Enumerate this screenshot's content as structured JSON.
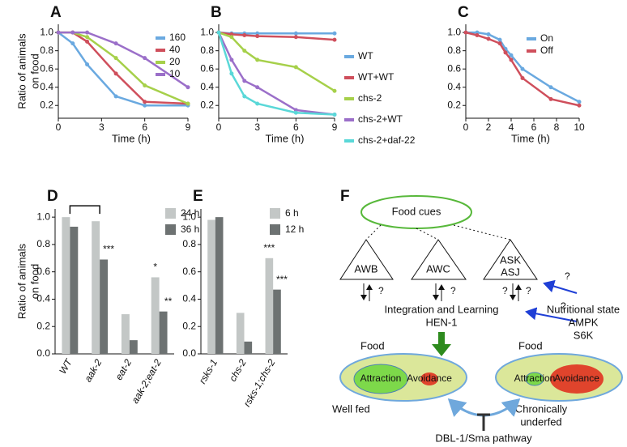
{
  "chart_data": [
    {
      "type": "line",
      "panel": "A",
      "ylabel": [
        "Ratio of animals",
        "on food"
      ],
      "xlabel": "Time (h)",
      "x": [
        0,
        1,
        2,
        4,
        6,
        9
      ],
      "xlim": [
        0,
        9
      ],
      "xticks": [
        0,
        3,
        6,
        9
      ],
      "ylim": [
        0.06,
        1.09
      ],
      "yticks": [
        0.2,
        0.4,
        0.6,
        0.8,
        {
          "value": 1,
          "label": "1.0"
        }
      ],
      "series": [
        {
          "name": "160",
          "color": "#6aa9e0",
          "values": [
            1.0,
            0.88,
            0.65,
            0.3,
            0.2,
            0.2
          ]
        },
        {
          "name": "40",
          "color": "#cf4f5c",
          "values": [
            1.0,
            1.0,
            0.9,
            0.55,
            0.24,
            0.22
          ]
        },
        {
          "name": "20",
          "color": "#a6d04a",
          "values": [
            1.0,
            1.0,
            0.95,
            0.72,
            0.42,
            0.22
          ]
        },
        {
          "name": "10",
          "color": "#9b6fc9",
          "values": [
            1.0,
            1.0,
            1.0,
            0.88,
            0.72,
            0.4
          ]
        }
      ]
    },
    {
      "type": "line",
      "panel": "B",
      "xlabel": "Time (h)",
      "x": [
        0,
        1,
        2,
        3,
        6,
        9
      ],
      "xlim": [
        0,
        9
      ],
      "xticks": [
        0,
        3,
        6,
        9
      ],
      "ylim": [
        0.06,
        1.09
      ],
      "yticks": [
        0.2,
        0.4,
        0.6,
        0.8,
        {
          "value": 1,
          "label": "1.0"
        }
      ],
      "series": [
        {
          "name": "WT",
          "color": "#6aa9e0",
          "values": [
            1.0,
            0.99,
            0.99,
            0.99,
            0.99,
            0.99
          ]
        },
        {
          "name": "WT+WT",
          "color": "#cf4f5c",
          "values": [
            1.0,
            0.98,
            0.97,
            0.96,
            0.95,
            0.92
          ]
        },
        {
          "name": "chs-2",
          "color": "#a6d04a",
          "values": [
            1.0,
            0.95,
            0.8,
            0.7,
            0.62,
            0.36
          ]
        },
        {
          "name": "chs-2+WT",
          "color": "#9b6fc9",
          "values": [
            1.0,
            0.7,
            0.47,
            0.4,
            0.15,
            0.1
          ]
        },
        {
          "name": "chs-2+daf-22",
          "color": "#5ad8d8",
          "values": [
            1.0,
            0.55,
            0.3,
            0.22,
            0.12,
            0.1
          ]
        }
      ]
    },
    {
      "type": "line",
      "panel": "C",
      "xlabel": "Time (h)",
      "x": [
        0,
        1,
        2,
        3,
        3.5,
        4,
        5,
        7.5,
        10
      ],
      "xlim": [
        0,
        10
      ],
      "xticks": [
        0,
        2,
        4,
        6,
        8,
        10
      ],
      "ylim": [
        0.06,
        1.09
      ],
      "yticks": [
        0.2,
        0.4,
        0.6,
        0.8,
        {
          "value": 1,
          "label": "1.0"
        }
      ],
      "series": [
        {
          "name": "On",
          "color": "#6aa9e0",
          "values": [
            1.0,
            1.0,
            0.98,
            0.92,
            0.82,
            0.75,
            0.6,
            0.4,
            0.24
          ]
        },
        {
          "name": "Off",
          "color": "#cf4f5c",
          "values": [
            1.0,
            0.97,
            0.93,
            0.88,
            0.78,
            0.7,
            0.5,
            0.27,
            0.2
          ]
        }
      ]
    },
    {
      "type": "bar",
      "panel": "D",
      "ylabel": [
        "Ratio of animals",
        "on food"
      ],
      "categories": [
        "WT",
        "aak-2",
        "eat-2",
        "aak-2;eat-2"
      ],
      "ylim": [
        0,
        1.06
      ],
      "yticks": [
        {
          "value": 0,
          "label": "0.0"
        },
        0.2,
        0.4,
        0.6,
        0.8,
        {
          "value": 1,
          "label": "1.0"
        }
      ],
      "series": [
        {
          "name": "24 h",
          "color": "#c3c7c6",
          "values": [
            1.0,
            0.97,
            0.29,
            0.56
          ],
          "significance": [
            null,
            null,
            null,
            "*"
          ]
        },
        {
          "name": "36 h",
          "color": "#6d7272",
          "values": [
            0.93,
            0.69,
            0.1,
            0.31
          ],
          "significance": [
            null,
            "***",
            null,
            "**"
          ]
        }
      ]
    },
    {
      "type": "bar",
      "panel": "E",
      "categories": [
        "rsks-1",
        "chs-2",
        "rsks-1;chs-2"
      ],
      "ylim": [
        0,
        1.06
      ],
      "yticks": [
        {
          "value": 0,
          "label": "0.0"
        },
        0.2,
        0.4,
        0.6,
        0.8,
        {
          "value": 1,
          "label": "1.0"
        }
      ],
      "series": [
        {
          "name": "6 h",
          "color": "#c3c7c6",
          "values": [
            0.98,
            0.3,
            0.7
          ],
          "significance": [
            null,
            null,
            "***"
          ]
        },
        {
          "name": "12 h",
          "color": "#6d7272",
          "values": [
            1.0,
            0.09,
            0.47
          ],
          "significance": [
            null,
            null,
            "***"
          ]
        }
      ]
    }
  ],
  "diagram": {
    "panel": "F",
    "food_cues": "Food cues",
    "neurons": [
      "AWB",
      "AWC",
      "ASK",
      "ASJ"
    ],
    "questions": [
      "?",
      "?",
      "?",
      "?",
      "?",
      "?"
    ],
    "integration": "Integration and Learning",
    "hen1": "HEN-1",
    "inputs": [
      "Nutritional state",
      "AMPK",
      "S6K"
    ],
    "states": [
      {
        "food": "Food",
        "attraction": "Attraction",
        "avoidance": "Avoidance",
        "label": [
          "Well fed"
        ]
      },
      {
        "food": "Food",
        "attraction": "Attraction",
        "avoidance": "Avoidance",
        "label": [
          "Chronically",
          "underfed"
        ]
      }
    ],
    "pathway": "DBL-1/Sma pathway"
  }
}
